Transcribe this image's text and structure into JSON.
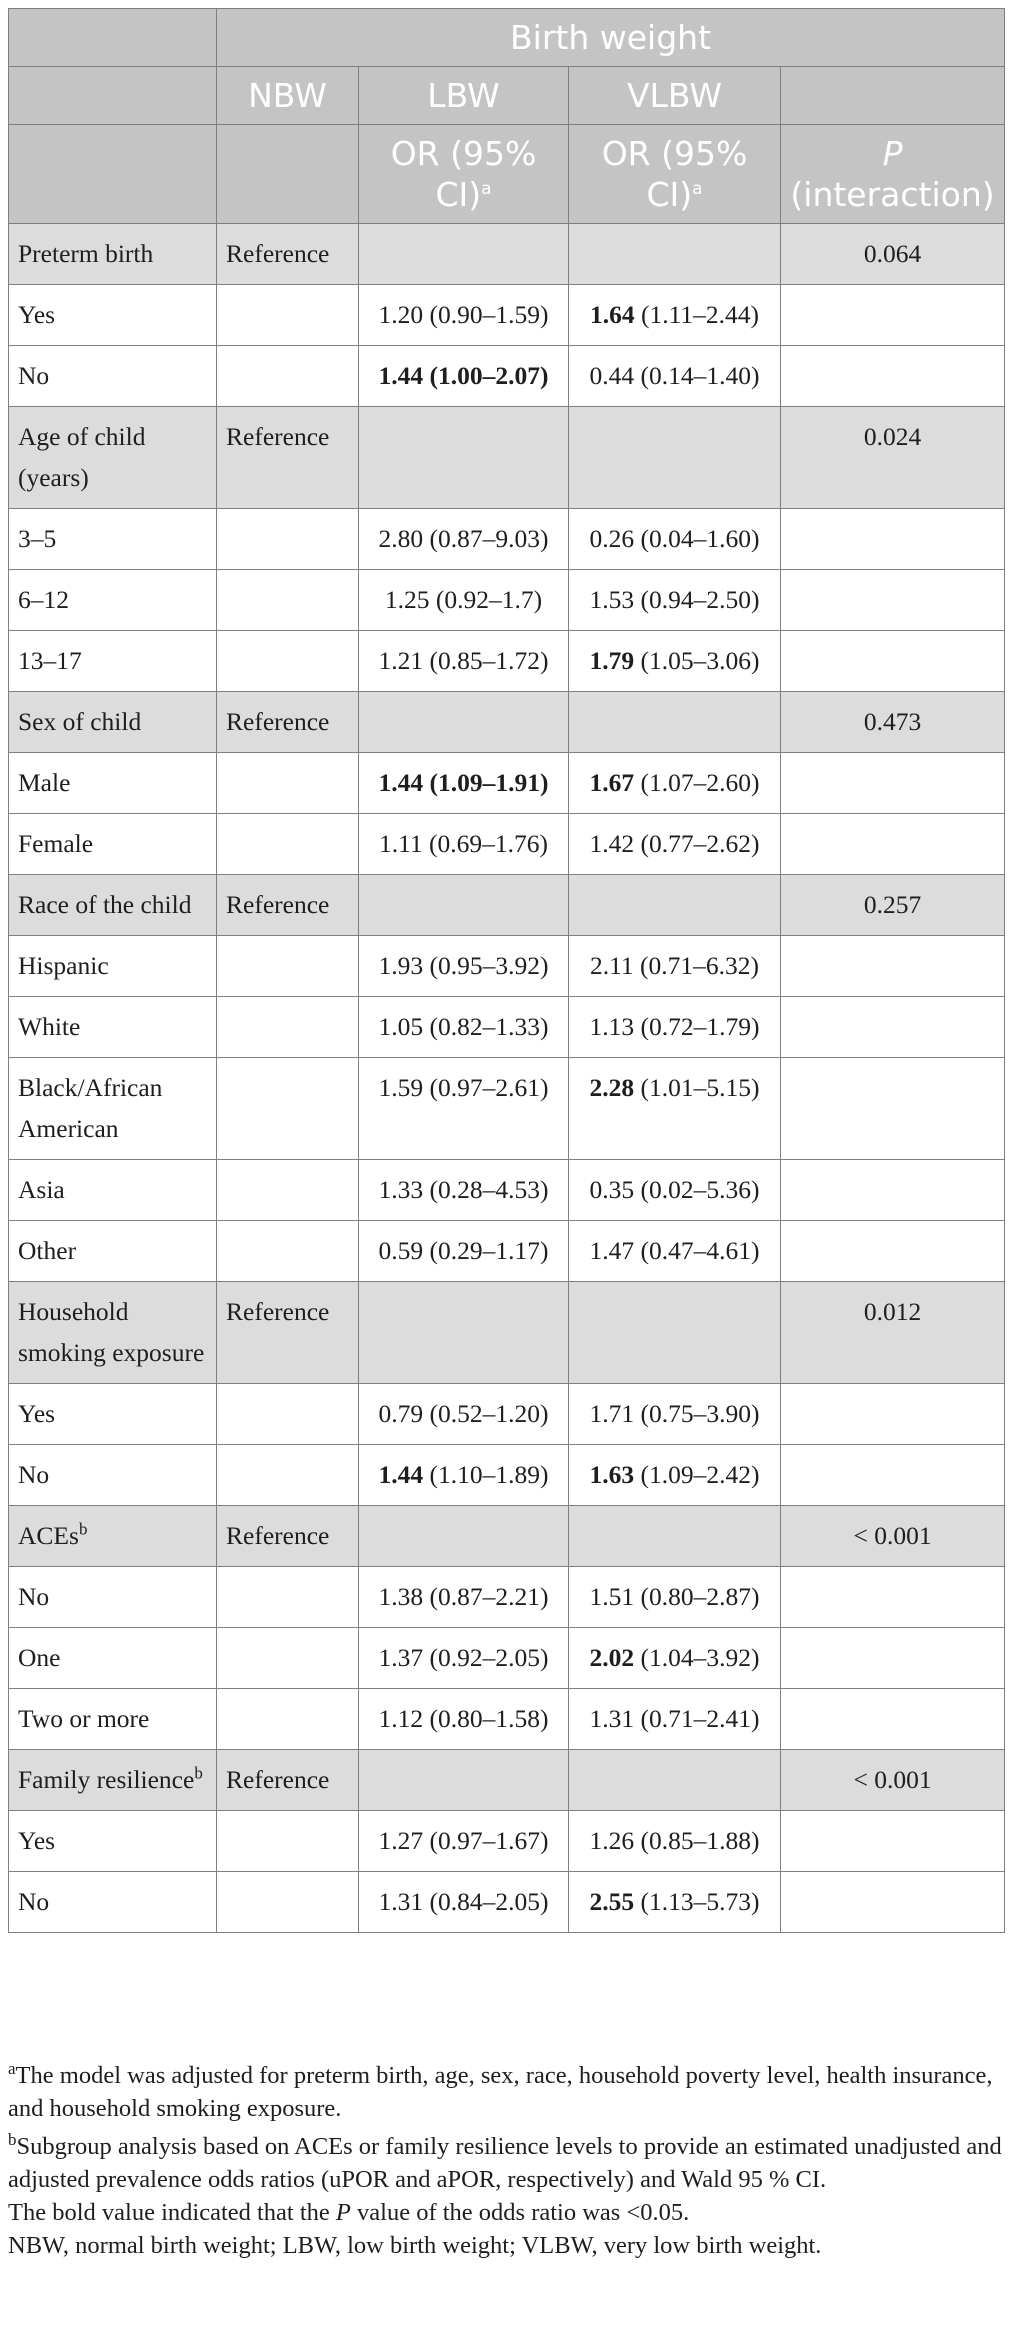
{
  "header": {
    "group_title": "Birth weight",
    "col_nbw": "NBW",
    "col_lbw": "LBW",
    "col_vlbw": "VLBW",
    "or_label": "OR (95% CI)",
    "or_sup": "a",
    "p_label": "P",
    "p_suffix": " (interaction)"
  },
  "rows": [
    {
      "kind": "cat",
      "label": "Preterm birth",
      "ref": "Reference",
      "p": "0.064"
    },
    {
      "kind": "sub",
      "label": "Yes",
      "lbw_b": "",
      "lbw": "1.20 (0.90–1.59)",
      "vlbw_b": "1.64",
      "vlbw": " (1.11–2.44)"
    },
    {
      "kind": "sub",
      "label": "No",
      "lbw_b": "1.44 (1.00–2.07)",
      "lbw": "",
      "vlbw_b": "",
      "vlbw": "0.44 (0.14–1.40)"
    },
    {
      "kind": "cat",
      "label": "Age of child (years)",
      "ref": "Reference",
      "p": "0.024"
    },
    {
      "kind": "sub",
      "label": "3–5",
      "lbw_b": "",
      "lbw": "2.80 (0.87–9.03)",
      "vlbw_b": "",
      "vlbw": "0.26 (0.04–1.60)"
    },
    {
      "kind": "sub",
      "label": "6–12",
      "lbw_b": "",
      "lbw": "1.25 (0.92–1.7)",
      "vlbw_b": "",
      "vlbw": "1.53 (0.94–2.50)"
    },
    {
      "kind": "sub",
      "label": "13–17",
      "lbw_b": "",
      "lbw": "1.21 (0.85–1.72)",
      "vlbw_b": "1.79",
      "vlbw": " (1.05–3.06)"
    },
    {
      "kind": "cat",
      "label": "Sex of child",
      "ref": "Reference",
      "p": "0.473"
    },
    {
      "kind": "sub",
      "label": "Male",
      "lbw_b": "1.44 (1.09–1.91)",
      "lbw": "",
      "vlbw_b": "1.67",
      "vlbw": " (1.07–2.60)"
    },
    {
      "kind": "sub",
      "label": "Female",
      "lbw_b": "",
      "lbw": "1.11 (0.69–1.76)",
      "vlbw_b": "",
      "vlbw": "1.42 (0.77–2.62)"
    },
    {
      "kind": "cat",
      "label": "Race of the child",
      "ref": "Reference",
      "p": "0.257"
    },
    {
      "kind": "sub",
      "label": "Hispanic",
      "lbw_b": "",
      "lbw": "1.93 (0.95–3.92)",
      "vlbw_b": "",
      "vlbw": "2.11 (0.71–6.32)"
    },
    {
      "kind": "sub",
      "label": "White",
      "lbw_b": "",
      "lbw": "1.05 (0.82–1.33)",
      "vlbw_b": "",
      "vlbw": "1.13 (0.72–1.79)"
    },
    {
      "kind": "sub",
      "label": "Black/African American",
      "lbw_b": "",
      "lbw": "1.59 (0.97–2.61)",
      "vlbw_b": "2.28",
      "vlbw": " (1.01–5.15)"
    },
    {
      "kind": "sub",
      "label": "Asia",
      "lbw_b": "",
      "lbw": "1.33 (0.28–4.53)",
      "vlbw_b": "",
      "vlbw": "0.35 (0.02–5.36)"
    },
    {
      "kind": "sub",
      "label": "Other",
      "lbw_b": "",
      "lbw": "0.59 (0.29–1.17)",
      "vlbw_b": "",
      "vlbw": "1.47 (0.47–4.61)"
    },
    {
      "kind": "cat",
      "label": "Household smoking exposure",
      "ref": "Reference",
      "p": "0.012"
    },
    {
      "kind": "sub",
      "label": "Yes",
      "lbw_b": "",
      "lbw": "0.79 (0.52–1.20)",
      "vlbw_b": "",
      "vlbw": "1.71 (0.75–3.90)"
    },
    {
      "kind": "sub",
      "label": "No",
      "lbw_b": "1.44",
      "lbw": " (1.10–1.89)",
      "vlbw_b": "1.63",
      "vlbw": " (1.09–2.42)"
    },
    {
      "kind": "cat",
      "label": "ACEs",
      "sup": "b",
      "ref": "Reference",
      "p": "< 0.001"
    },
    {
      "kind": "sub",
      "label": "No",
      "lbw_b": "",
      "lbw": "1.38 (0.87–2.21)",
      "vlbw_b": "",
      "vlbw": "1.51 (0.80–2.87)"
    },
    {
      "kind": "sub",
      "label": "One",
      "lbw_b": "",
      "lbw": "1.37 (0.92–2.05)",
      "vlbw_b": "2.02",
      "vlbw": " (1.04–3.92)"
    },
    {
      "kind": "sub",
      "label": "Two or more",
      "lbw_b": "",
      "lbw": "1.12 (0.80–1.58)",
      "vlbw_b": "",
      "vlbw": "1.31 (0.71–2.41)"
    },
    {
      "kind": "cat",
      "label": "Family resilience",
      "sup": "b",
      "ref": "Reference",
      "p": "< 0.001"
    },
    {
      "kind": "sub",
      "label": "Yes",
      "lbw_b": "",
      "lbw": "1.27 (0.97–1.67)",
      "vlbw_b": "",
      "vlbw": "1.26 (0.85–1.88)"
    },
    {
      "kind": "sub",
      "label": "No",
      "lbw_b": "",
      "lbw": "1.31 (0.84–2.05)",
      "vlbw_b": "2.55",
      "vlbw": " (1.13–5.73)"
    }
  ],
  "footnotes": {
    "a_mark": "a",
    "a_text": "The model was adjusted for preterm birth, age, sex, race, household poverty level, health insurance, and household smoking exposure.",
    "b_mark": "b",
    "b_text": "Subgroup analysis based on ACEs or family resilience levels to provide an estimated unadjusted and adjusted prevalence odds ratios (uPOR and aPOR, respectively) and Wald 95 % CI.",
    "bold_pre": "The bold value indicated that the ",
    "bold_p": "P",
    "bold_post": " value of the odds ratio was <0.05.",
    "abbrev": "NBW, normal birth weight; LBW, low birth weight; VLBW, very low birth weight."
  },
  "colors": {
    "header_bg": "#c4c4c4",
    "category_bg": "#dcdcdc",
    "border": "#7f7f7f",
    "header_text": "#ffffff"
  }
}
